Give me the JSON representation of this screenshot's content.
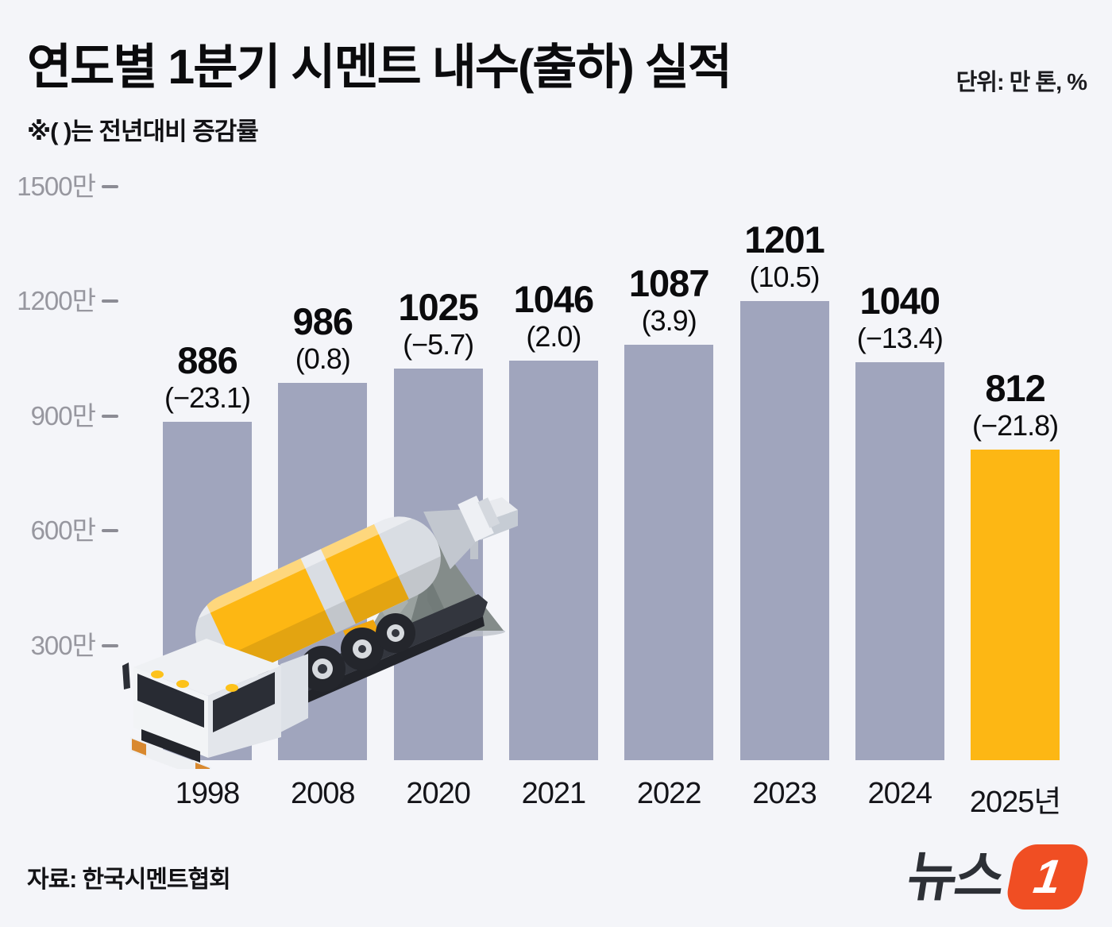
{
  "header": {
    "title": "연도별 1분기 시멘트 내수(출하) 실적",
    "unit_label": "단위: 만 톤, %",
    "note": "※( )는 전년대비 증감률"
  },
  "chart_data": {
    "type": "bar",
    "title": "연도별 1분기 시멘트 내수(출하) 실적",
    "unit": "만 톤, %",
    "categories": [
      "1998",
      "2008",
      "2020",
      "2021",
      "2022",
      "2023",
      "2024",
      "2025년"
    ],
    "values": [
      886,
      986,
      1025,
      1046,
      1087,
      1201,
      1040,
      812
    ],
    "yoy_change_pct": [
      -23.1,
      0.8,
      -5.7,
      2.0,
      3.9,
      10.5,
      -13.4,
      -21.8
    ],
    "value_labels": [
      "886",
      "986",
      "1025",
      "1046",
      "1087",
      "1201",
      "1040",
      "812"
    ],
    "pct_labels": [
      "(−23.1)",
      "(0.8)",
      "(−5.7)",
      "(2.0)",
      "(3.9)",
      "(10.5)",
      "(−13.4)",
      "(−21.8)"
    ],
    "y_ticks": [
      "1500만",
      "1200만",
      "900만",
      "600만",
      "300만"
    ],
    "y_tick_values": [
      1500,
      1200,
      900,
      600,
      300
    ],
    "ylim": [
      0,
      1500
    ],
    "grid": false,
    "legend": false,
    "bar_color": "#a0a5bd",
    "highlight_color": "#fdb714",
    "highlight_index": 7
  },
  "footer": {
    "source": "자료: 한국시멘트협회"
  },
  "logo": {
    "text": "뉴스",
    "badge": "1",
    "badge_color": "#f04e23"
  },
  "colors": {
    "background": "#f4f5f9",
    "tick_gray": "#97979f",
    "label_black": "#0b0b0d"
  },
  "illustration": "cement-mixer-truck"
}
